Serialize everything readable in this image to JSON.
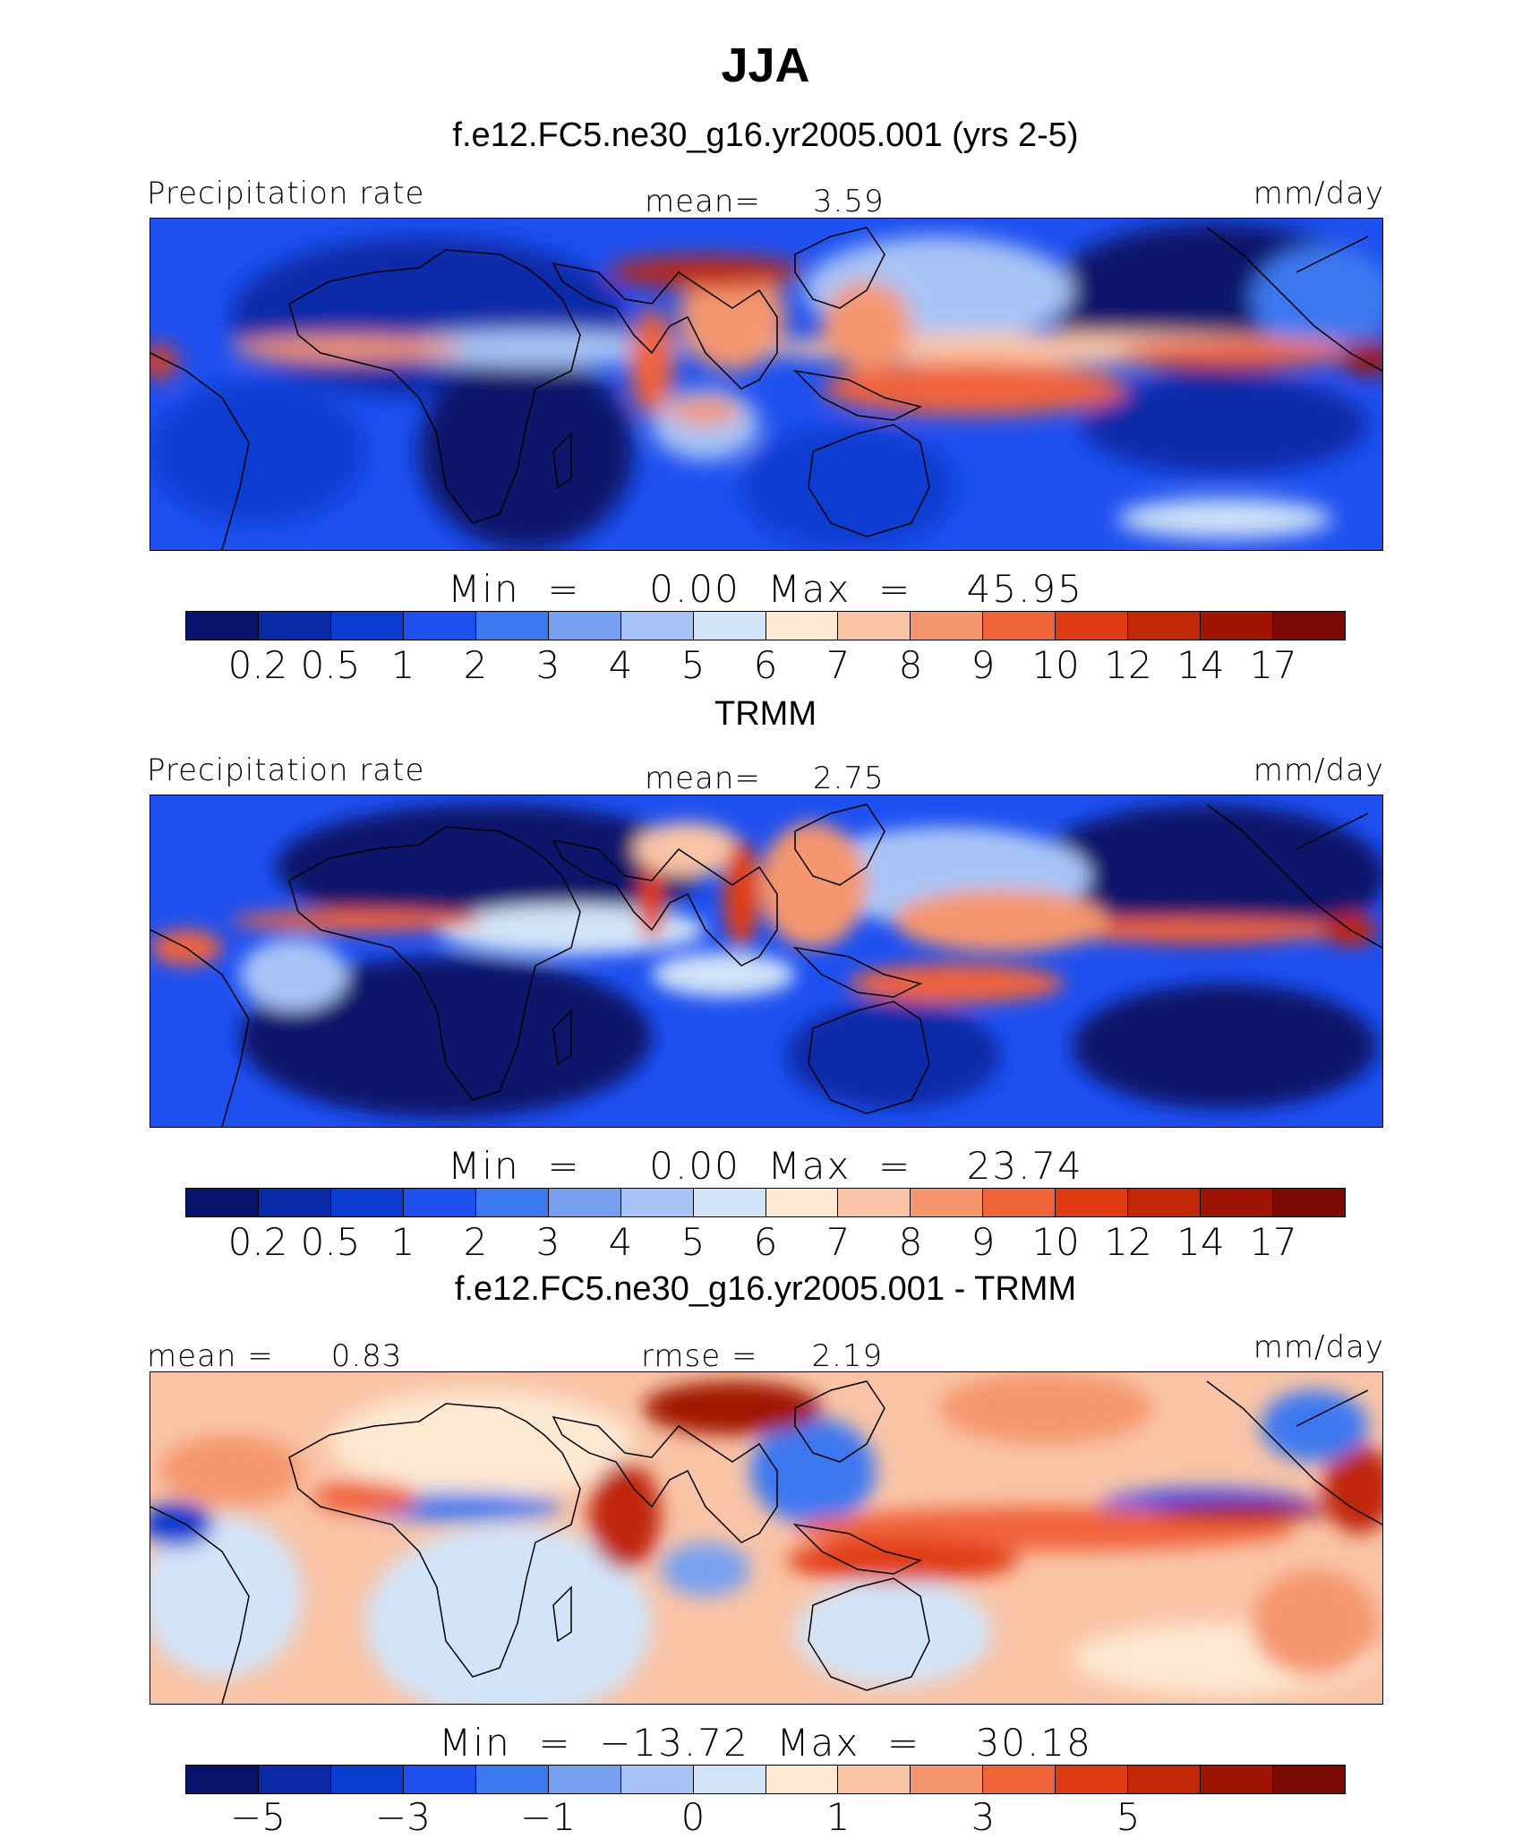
{
  "title": "JJA",
  "panels": [
    {
      "id": "model",
      "subtitle": "f.e12.FC5.ne30_g16.yr2005.001 (yrs 2-5)",
      "left_label": "Precipitation rate",
      "center_label": "mean=",
      "center_value": "3.59",
      "right_label": "mm/day",
      "min_label": "Min",
      "min_value": "0.00",
      "max_label": "Max",
      "max_value": "45.95",
      "ticks": [
        "0.2",
        "0.5",
        "1",
        "2",
        "3",
        "4",
        "5",
        "6",
        "7",
        "8",
        "9",
        "10",
        "12",
        "14",
        "17"
      ]
    },
    {
      "id": "obs",
      "subtitle": "TRMM",
      "left_label": "Precipitation rate",
      "center_label": "mean=",
      "center_value": "2.75",
      "right_label": "mm/day",
      "min_label": "Min",
      "min_value": "0.00",
      "max_label": "Max",
      "max_value": "23.74",
      "ticks": [
        "0.2",
        "0.5",
        "1",
        "2",
        "3",
        "4",
        "5",
        "6",
        "7",
        "8",
        "9",
        "10",
        "12",
        "14",
        "17"
      ]
    },
    {
      "id": "diff",
      "subtitle": "f.e12.FC5.ne30_g16.yr2005.001 - TRMM",
      "left_label": "mean =",
      "left_value": "0.83",
      "center_label": "rmse =",
      "center_value": "2.19",
      "right_label": "mm/day",
      "min_label": "Min",
      "min_value": "−13.72",
      "max_label": "Max",
      "max_value": "30.18",
      "ticks": [
        "−5",
        "",
        "−3",
        "",
        "−1",
        "",
        "0",
        "",
        "1",
        "",
        "3",
        "",
        "5",
        "",
        ""
      ]
    }
  ],
  "colorbar_colors": [
    "#08126b",
    "#0a2aa8",
    "#0a3cd0",
    "#1e50f0",
    "#3c78f0",
    "#78a0f0",
    "#a8c4f6",
    "#d2e4f8",
    "#fde8d2",
    "#f9c4a6",
    "#f5966e",
    "#f0643c",
    "#e03c14",
    "#c02808",
    "#a01404",
    "#7a0a02"
  ],
  "chart_data": [
    {
      "type": "heatmap",
      "title": "f.e12.FC5.ne30_g16.yr2005.001 (yrs 2-5)",
      "variable": "Precipitation rate",
      "units": "mm/day",
      "mean": 3.59,
      "min": 0.0,
      "max": 45.95,
      "levels": [
        0.2,
        0.5,
        1,
        2,
        3,
        4,
        5,
        6,
        7,
        8,
        9,
        10,
        12,
        14,
        17
      ],
      "colormap": "blue-white-red"
    },
    {
      "type": "heatmap",
      "title": "TRMM",
      "variable": "Precipitation rate",
      "units": "mm/day",
      "mean": 2.75,
      "min": 0.0,
      "max": 23.74,
      "levels": [
        0.2,
        0.5,
        1,
        2,
        3,
        4,
        5,
        6,
        7,
        8,
        9,
        10,
        12,
        14,
        17
      ],
      "colormap": "blue-white-red"
    },
    {
      "type": "heatmap",
      "title": "f.e12.FC5.ne30_g16.yr2005.001 - TRMM",
      "units": "mm/day",
      "mean": 0.83,
      "rmse": 2.19,
      "min": -13.72,
      "max": 30.18,
      "levels_labeled": [
        -5,
        -3,
        -1,
        0,
        1,
        3,
        5
      ],
      "colormap": "blue-white-red"
    }
  ]
}
